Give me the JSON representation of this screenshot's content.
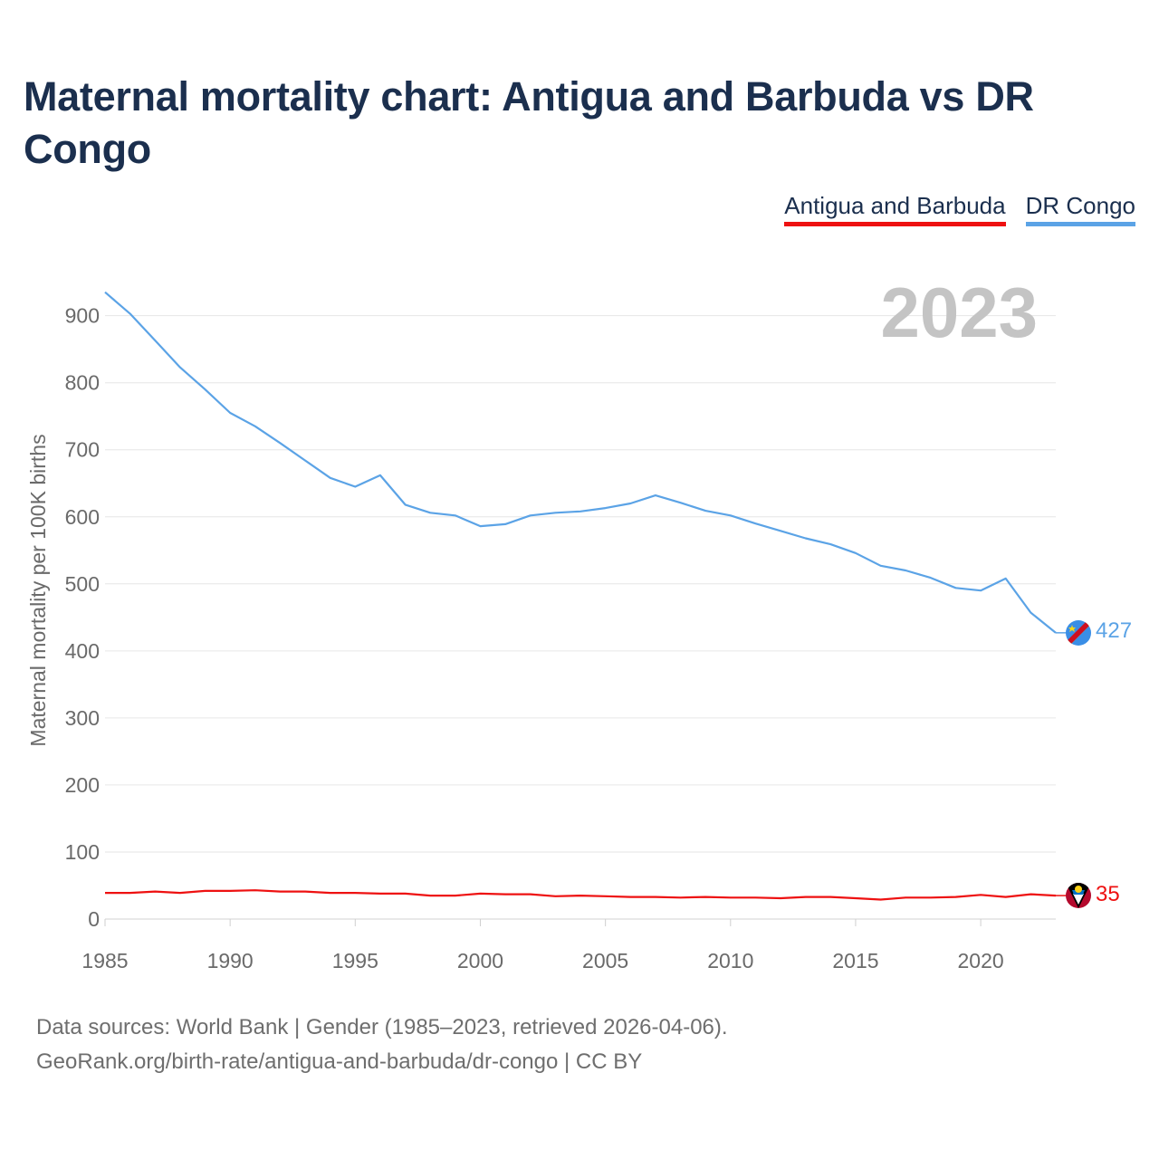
{
  "title": "Maternal mortality chart: Antigua and Barbuda vs DR Congo",
  "legend": {
    "antigua": "Antigua and Barbuda",
    "drcongo": "DR Congo"
  },
  "colors": {
    "antigua": "#ee1111",
    "drcongo": "#5ba3e6",
    "title": "#1b2f4e",
    "grid": "#e6e6e6"
  },
  "footer": {
    "line1": "Data sources: World Bank | Gender (1985–2023, retrieved 2026-04-06).",
    "line2": "GeoRank.org/birth-rate/antigua-and-barbuda/dr-congo | CC BY"
  },
  "chart_data": {
    "type": "line",
    "title": "Maternal mortality chart: Antigua and Barbuda vs DR Congo",
    "ylabel": "Maternal mortality per 100K births",
    "xlabel": "",
    "watermark_year": "2023",
    "xlim": [
      1985,
      2023
    ],
    "ylim": [
      0,
      950
    ],
    "x_ticks": [
      1985,
      1990,
      1995,
      2000,
      2005,
      2010,
      2015,
      2020
    ],
    "y_ticks": [
      0,
      100,
      200,
      300,
      400,
      500,
      600,
      700,
      800,
      900
    ],
    "x": [
      1985,
      1986,
      1987,
      1988,
      1989,
      1990,
      1991,
      1992,
      1993,
      1994,
      1995,
      1996,
      1997,
      1998,
      1999,
      2000,
      2001,
      2002,
      2003,
      2004,
      2005,
      2006,
      2007,
      2008,
      2009,
      2010,
      2011,
      2012,
      2013,
      2014,
      2015,
      2016,
      2017,
      2018,
      2019,
      2020,
      2021,
      2022,
      2023
    ],
    "series": [
      {
        "name": "DR Congo",
        "color": "#5ba3e6",
        "end_label": "427",
        "flag_icon": "dr-congo-flag-icon",
        "values": [
          935,
          903,
          863,
          823,
          790,
          755,
          735,
          710,
          684,
          658,
          645,
          662,
          618,
          606,
          602,
          586,
          589,
          602,
          606,
          608,
          613,
          620,
          632,
          621,
          609,
          602,
          590,
          579,
          568,
          559,
          546,
          527,
          520,
          509,
          494,
          490,
          508,
          457,
          427
        ]
      },
      {
        "name": "Antigua and Barbuda",
        "color": "#ee1111",
        "end_label": "35",
        "flag_icon": "antigua-flag-icon",
        "values": [
          39,
          39,
          41,
          39,
          42,
          42,
          43,
          41,
          41,
          39,
          39,
          38,
          38,
          35,
          35,
          38,
          37,
          37,
          34,
          35,
          34,
          33,
          33,
          32,
          33,
          32,
          32,
          31,
          33,
          33,
          31,
          29,
          32,
          32,
          33,
          36,
          33,
          37,
          35
        ]
      }
    ]
  }
}
